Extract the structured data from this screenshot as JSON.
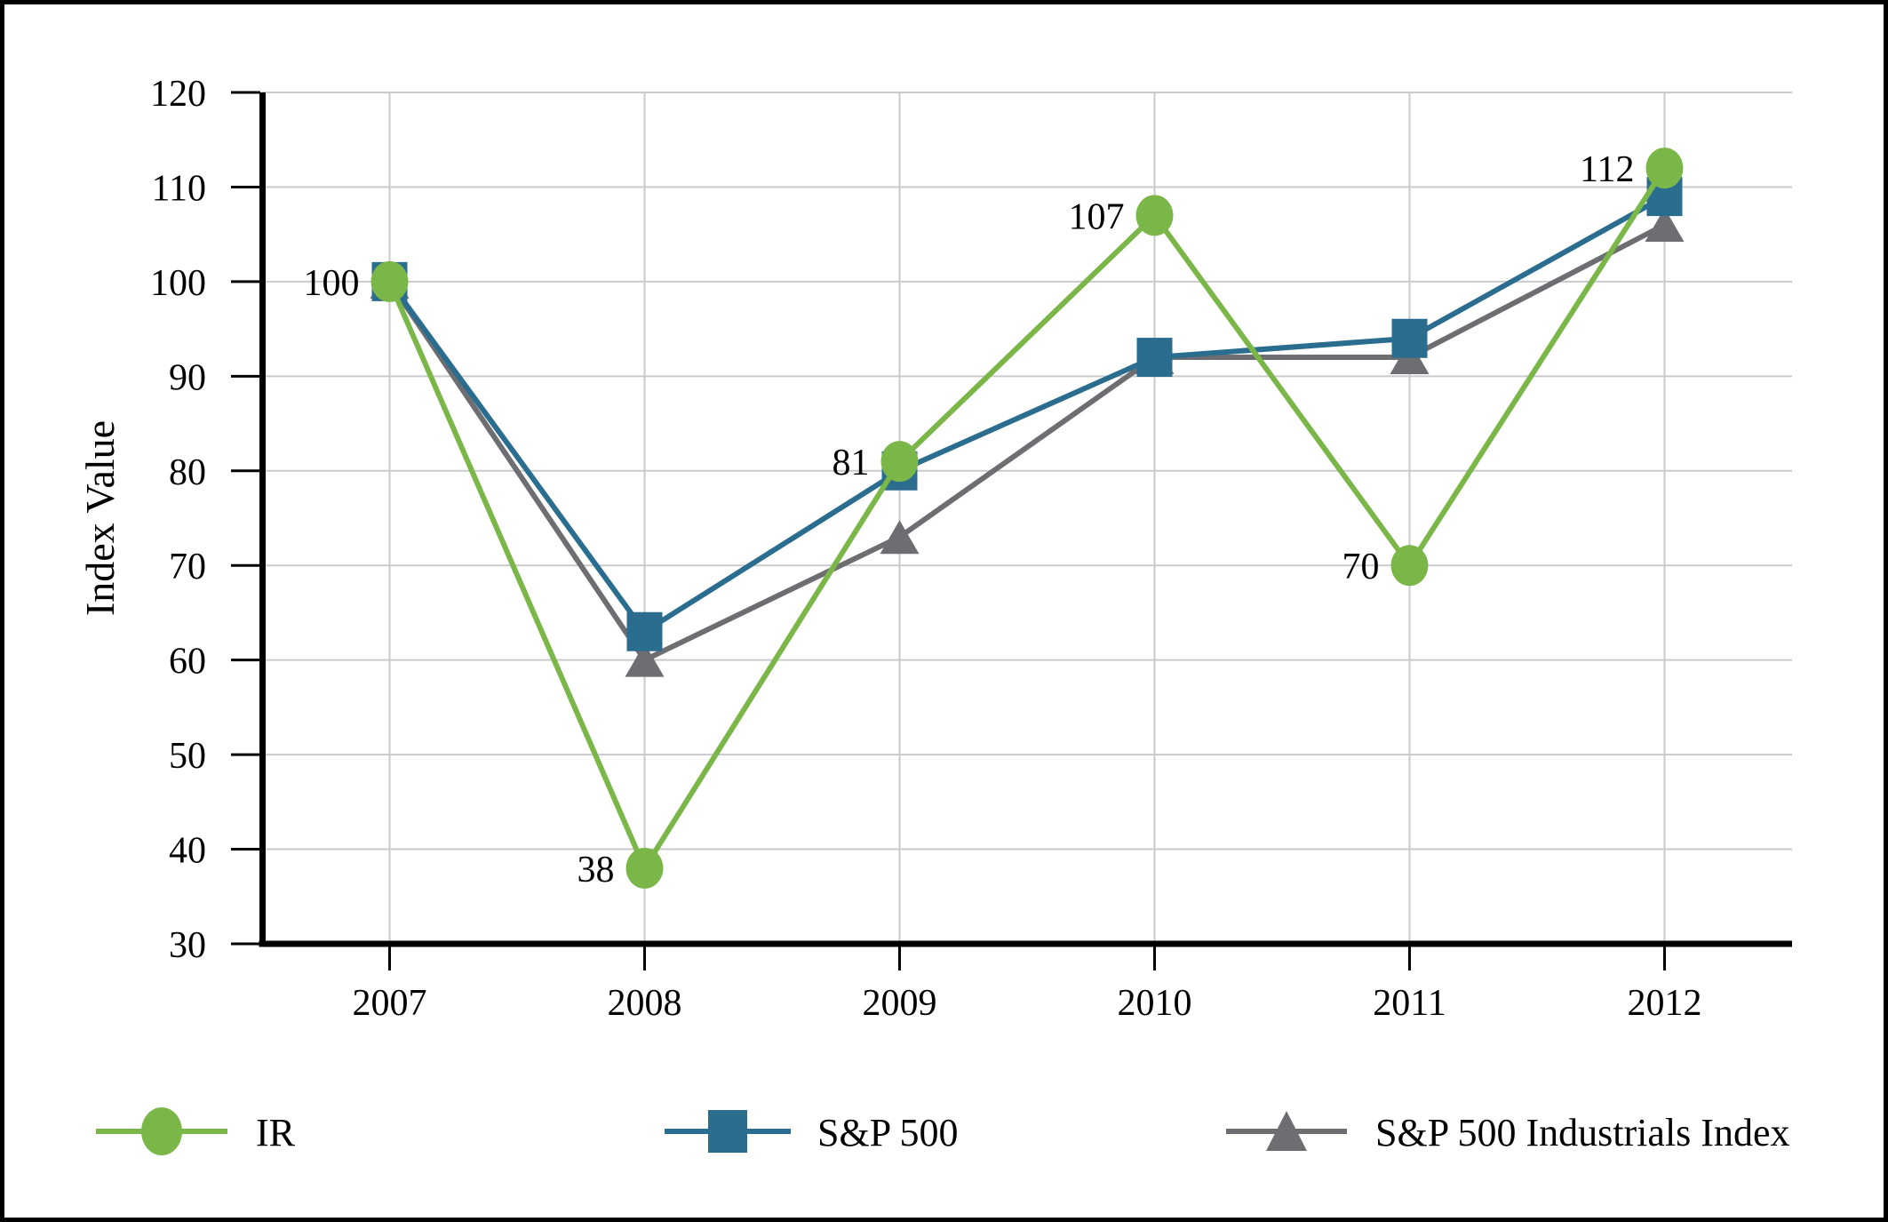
{
  "page": {
    "background_color": "#ffffff",
    "frame_color": "#000000"
  },
  "chart_data": {
    "type": "line",
    "title": "",
    "categories": [
      "2007",
      "2008",
      "2009",
      "2010",
      "2011",
      "2012"
    ],
    "series": [
      {
        "name": "IR",
        "color": "#7ab648",
        "marker": "circle",
        "values": [
          100,
          38,
          81,
          107,
          70,
          112
        ],
        "data_labels": true,
        "labels": [
          "100",
          "38",
          "81",
          "107",
          "70",
          "112"
        ]
      },
      {
        "name": "S&P 500",
        "color": "#2b6d8e",
        "marker": "square",
        "values": [
          100,
          63,
          80,
          92,
          94,
          109
        ],
        "data_labels": false,
        "labels": []
      },
      {
        "name": "S&P 500 Industrials Index",
        "color": "#6d6e71",
        "marker": "triangle",
        "values": [
          100,
          60,
          73,
          92,
          92,
          106
        ],
        "data_labels": false,
        "labels": []
      }
    ],
    "xlabel": "",
    "ylabel": "Index Value",
    "ylim": [
      30,
      120
    ],
    "ytick_step": 10,
    "yticks": [
      30,
      40,
      50,
      60,
      70,
      80,
      90,
      100,
      110,
      120
    ],
    "grid": true,
    "gridline_color": "#c9cacb",
    "axis_color": "#000000",
    "text_color": "#000000",
    "legend_position": "bottom"
  },
  "legend": {
    "items": [
      {
        "label": "IR"
      },
      {
        "label": "S&P 500"
      },
      {
        "label": "S&P 500 Industrials Index"
      }
    ]
  }
}
